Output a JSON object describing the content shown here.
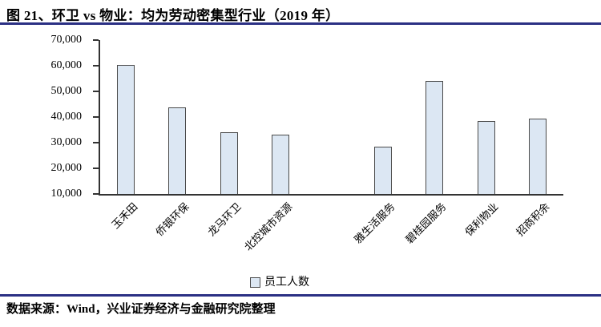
{
  "title": {
    "text": "图 21、环卫 vs 物业：均为劳动密集型行业（2019 年）"
  },
  "source": {
    "text": "数据来源：Wind，兴业证券经济与金融研究院整理"
  },
  "colors": {
    "rule_navy": "#2B3084",
    "axis": "#333333",
    "bar_fill": "#DCE7F3",
    "bar_border": "#4A4A4A"
  },
  "chart_data": {
    "type": "bar",
    "title": "环卫 vs 物业：均为劳动密集型行业（2019 年）",
    "categories": [
      "玉禾田",
      "侨银环保",
      "龙马环卫",
      "北控城市资源",
      "雅生活服务",
      "碧桂园服务",
      "保利物业",
      "招商积余"
    ],
    "series": [
      {
        "name": "员工人数",
        "values": [
          60300,
          43600,
          34000,
          33100,
          28500,
          54200,
          38500,
          39300
        ]
      }
    ],
    "legend": {
      "labels": [
        "员工人数"
      ],
      "position": "bottom"
    },
    "ylabel": "",
    "xlabel": "",
    "ylim": [
      10000,
      70000
    ],
    "yticks": [
      10000,
      20000,
      30000,
      40000,
      50000,
      60000,
      70000
    ],
    "ytick_labels": [
      "10,000",
      "20,000",
      "30,000",
      "40,000",
      "50,000",
      "60,000",
      "70,000"
    ],
    "grid": false,
    "x_label_rotation_deg": -45,
    "gap_after_category_index": 3
  }
}
